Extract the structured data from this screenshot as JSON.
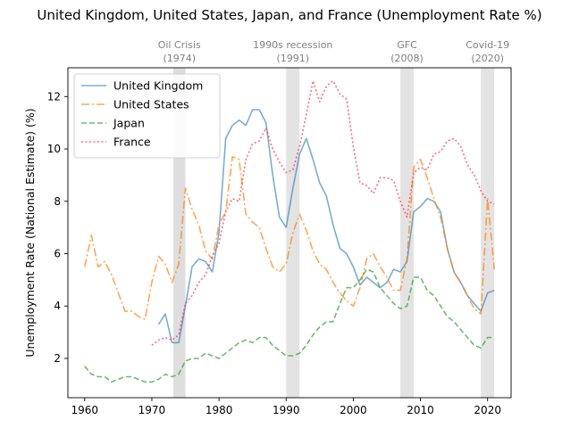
{
  "chart_data": {
    "type": "line",
    "title": "United Kingdom, United States, Japan, and France (Unemployment Rate %)",
    "xlabel": "",
    "ylabel": "Unemployment Rate (National Estimate) (%)",
    "xlim": [
      1957.5,
      2023.5
    ],
    "ylim": [
      0.5,
      13.1
    ],
    "xticks": [
      1960,
      1970,
      1980,
      1990,
      2000,
      2010,
      2020
    ],
    "yticks": [
      2,
      4,
      6,
      8,
      10,
      12
    ],
    "grid": false,
    "legend_position": "top-left",
    "events": [
      {
        "label": "Oil Crisis",
        "year_label": "(1974)",
        "start": 1973.2,
        "end": 1975.0
      },
      {
        "label": "1990s recession",
        "year_label": "(1991)",
        "start": 1990.0,
        "end": 1992.0
      },
      {
        "label": "GFC",
        "year_label": "(2008)",
        "start": 2007.0,
        "end": 2009.0
      },
      {
        "label": "Covid-19",
        "year_label": "(2020)",
        "start": 2019.0,
        "end": 2021.0
      }
    ],
    "series": [
      {
        "name": "United Kingdom",
        "color": "#1f77b4",
        "style": "solid",
        "x": [
          1971,
          1972,
          1973,
          1974,
          1975,
          1976,
          1977,
          1978,
          1979,
          1980,
          1981,
          1982,
          1983,
          1984,
          1985,
          1986,
          1987,
          1988,
          1989,
          1990,
          1991,
          1992,
          1993,
          1994,
          1995,
          1996,
          1997,
          1998,
          1999,
          2000,
          2001,
          2002,
          2003,
          2004,
          2005,
          2006,
          2007,
          2008,
          2009,
          2010,
          2011,
          2012,
          2013,
          2014,
          2015,
          2016,
          2017,
          2018,
          2019,
          2020,
          2021
        ],
        "y": [
          3.3,
          3.7,
          2.6,
          2.6,
          4.0,
          5.5,
          5.8,
          5.7,
          5.3,
          6.8,
          10.4,
          10.9,
          11.1,
          10.9,
          11.5,
          11.5,
          11.0,
          9.0,
          7.4,
          7.0,
          8.5,
          9.8,
          10.4,
          9.6,
          8.7,
          8.2,
          7.1,
          6.2,
          6.0,
          5.5,
          4.8,
          5.1,
          4.9,
          4.7,
          4.9,
          5.4,
          5.3,
          5.7,
          7.6,
          7.8,
          8.1,
          8.0,
          7.6,
          6.2,
          5.3,
          4.9,
          4.4,
          4.1,
          3.8,
          4.5,
          4.6
        ]
      },
      {
        "name": "United States",
        "color": "#ff7f0e",
        "style": "dashdot",
        "x": [
          1960,
          1961,
          1962,
          1963,
          1964,
          1965,
          1966,
          1967,
          1968,
          1969,
          1970,
          1971,
          1972,
          1973,
          1974,
          1975,
          1976,
          1977,
          1978,
          1979,
          1980,
          1981,
          1982,
          1983,
          1984,
          1985,
          1986,
          1987,
          1988,
          1989,
          1990,
          1991,
          1992,
          1993,
          1994,
          1995,
          1996,
          1997,
          1998,
          1999,
          2000,
          2001,
          2002,
          2003,
          2004,
          2005,
          2006,
          2007,
          2008,
          2009,
          2010,
          2011,
          2012,
          2013,
          2014,
          2015,
          2016,
          2017,
          2018,
          2019,
          2020,
          2021
        ],
        "y": [
          5.5,
          6.7,
          5.5,
          5.7,
          5.2,
          4.5,
          3.8,
          3.8,
          3.6,
          3.5,
          4.9,
          5.9,
          5.6,
          4.9,
          5.6,
          8.5,
          7.7,
          7.1,
          6.1,
          5.8,
          7.1,
          7.6,
          9.7,
          9.6,
          7.5,
          7.2,
          7.0,
          6.2,
          5.5,
          5.3,
          5.6,
          6.8,
          7.5,
          6.9,
          6.1,
          5.6,
          5.4,
          4.9,
          4.5,
          4.2,
          4.0,
          4.7,
          5.8,
          6.0,
          5.5,
          5.1,
          4.6,
          4.6,
          5.8,
          9.3,
          9.6,
          8.9,
          8.1,
          7.4,
          6.2,
          5.3,
          4.9,
          4.4,
          3.9,
          3.7,
          8.1,
          5.4
        ]
      },
      {
        "name": "Japan",
        "color": "#2ca02c",
        "style": "dashed",
        "x": [
          1960,
          1961,
          1962,
          1963,
          1964,
          1965,
          1966,
          1967,
          1968,
          1969,
          1970,
          1971,
          1972,
          1973,
          1974,
          1975,
          1976,
          1977,
          1978,
          1979,
          1980,
          1981,
          1982,
          1983,
          1984,
          1985,
          1986,
          1987,
          1988,
          1989,
          1990,
          1991,
          1992,
          1993,
          1994,
          1995,
          1996,
          1997,
          1998,
          1999,
          2000,
          2001,
          2002,
          2003,
          2004,
          2005,
          2006,
          2007,
          2008,
          2009,
          2010,
          2011,
          2012,
          2013,
          2014,
          2015,
          2016,
          2017,
          2018,
          2019,
          2020,
          2021
        ],
        "y": [
          1.7,
          1.4,
          1.3,
          1.3,
          1.1,
          1.2,
          1.3,
          1.3,
          1.2,
          1.1,
          1.1,
          1.2,
          1.4,
          1.3,
          1.4,
          1.9,
          2.0,
          2.0,
          2.2,
          2.1,
          2.0,
          2.2,
          2.4,
          2.6,
          2.7,
          2.6,
          2.8,
          2.8,
          2.5,
          2.3,
          2.1,
          2.1,
          2.2,
          2.5,
          2.9,
          3.2,
          3.4,
          3.4,
          4.1,
          4.7,
          4.7,
          5.0,
          5.4,
          5.3,
          4.7,
          4.4,
          4.1,
          3.9,
          4.0,
          5.1,
          5.1,
          4.6,
          4.4,
          4.0,
          3.6,
          3.4,
          3.1,
          2.8,
          2.5,
          2.4,
          2.8,
          2.8
        ]
      },
      {
        "name": "France",
        "color": "#ff2a4a",
        "style": "dotted",
        "x": [
          1970,
          1971,
          1972,
          1973,
          1974,
          1975,
          1976,
          1977,
          1978,
          1979,
          1980,
          1981,
          1982,
          1983,
          1984,
          1985,
          1986,
          1987,
          1988,
          1989,
          1990,
          1991,
          1992,
          1993,
          1994,
          1995,
          1996,
          1997,
          1998,
          1999,
          2000,
          2001,
          2002,
          2003,
          2004,
          2005,
          2006,
          2007,
          2008,
          2009,
          2010,
          2011,
          2012,
          2013,
          2014,
          2015,
          2016,
          2017,
          2018,
          2019,
          2020,
          2021
        ],
        "y": [
          2.5,
          2.7,
          2.8,
          2.7,
          2.9,
          4.1,
          4.4,
          4.9,
          5.2,
          5.9,
          6.4,
          7.6,
          8.1,
          8.0,
          9.6,
          10.2,
          10.3,
          10.8,
          10.0,
          9.5,
          9.1,
          9.2,
          10.1,
          11.3,
          12.6,
          11.8,
          12.4,
          12.6,
          12.1,
          11.9,
          10.1,
          8.7,
          8.6,
          8.3,
          8.9,
          8.9,
          8.8,
          8.0,
          7.4,
          9.1,
          9.3,
          9.2,
          9.8,
          9.9,
          10.3,
          10.4,
          10.1,
          9.4,
          9.0,
          8.4,
          8.0,
          7.9
        ]
      }
    ]
  }
}
